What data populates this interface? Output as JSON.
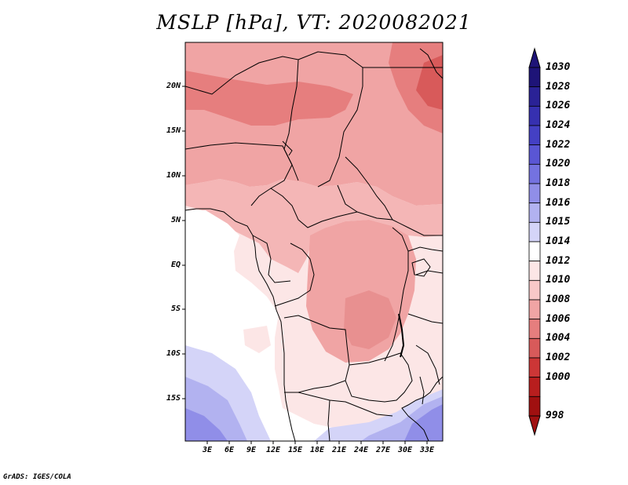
{
  "title": "MSLP [hPa], VT: 2020082021",
  "footer": "GrADS: IGES/COLA",
  "latitude_labels": [
    "20N",
    "15N",
    "10N",
    "5N",
    "EQ",
    "5S",
    "10S",
    "15S"
  ],
  "longitude_labels": [
    "3E",
    "6E",
    "9E",
    "12E",
    "15E",
    "18E",
    "21E",
    "24E",
    "27E",
    "30E",
    "33E"
  ],
  "colorbar": {
    "labels": [
      "1030",
      "1028",
      "1026",
      "1024",
      "1022",
      "1020",
      "1018",
      "1016",
      "1015",
      "1014",
      "1012",
      "1010",
      "1008",
      "1006",
      "1004",
      "1002",
      "1000",
      "998"
    ],
    "colors": [
      "#1e1478",
      "#2a2296",
      "#3630b0",
      "#4440c4",
      "#5a56d4",
      "#7472e0",
      "#908ee8",
      "#b2b2f0",
      "#d4d4f8",
      "#ffffff",
      "#fce6e6",
      "#f8c8c8",
      "#f0a4a4",
      "#e67e7e",
      "#d85a5a",
      "#cc3636",
      "#b81e1e",
      "#a01010"
    ]
  }
}
